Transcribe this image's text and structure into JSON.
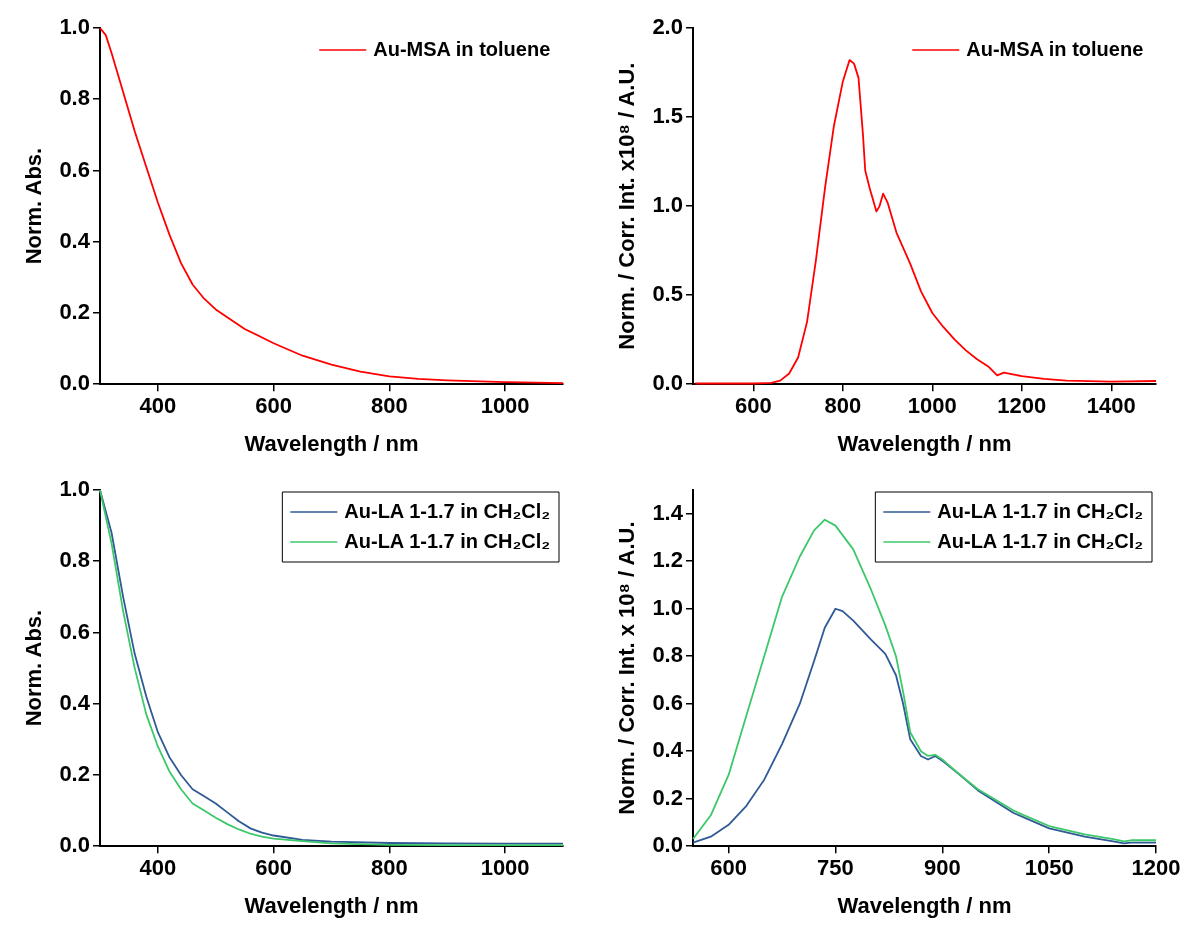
{
  "chart_data": [
    {
      "type": "line",
      "xlabel": "Wavelength / nm",
      "ylabel": "Norm. Abs.",
      "xlim": [
        300,
        1100
      ],
      "xticks": [
        400,
        600,
        800,
        1000
      ],
      "ylim": [
        0,
        1.0
      ],
      "yticks": [
        {
          "value": 0,
          "label": "0.0"
        },
        0.2,
        0.4,
        0.6,
        0.8,
        {
          "value": 1,
          "label": "1.0"
        }
      ],
      "legend": "top right",
      "series": [
        {
          "name": "Au-MSA in toluene",
          "color": "#ff0000",
          "x": [
            300,
            310,
            320,
            340,
            360,
            380,
            400,
            420,
            440,
            460,
            480,
            500,
            550,
            600,
            650,
            700,
            750,
            800,
            850,
            900,
            1000,
            1100
          ],
          "values": [
            1.0,
            0.98,
            0.93,
            0.82,
            0.71,
            0.61,
            0.51,
            0.42,
            0.34,
            0.28,
            0.24,
            0.21,
            0.155,
            0.115,
            0.08,
            0.055,
            0.035,
            0.022,
            0.015,
            0.011,
            0.006,
            0.003
          ]
        }
      ]
    },
    {
      "type": "line",
      "xlabel": "Wavelength / nm",
      "ylabel": "Norm. / Corr. Int. x10⁸ / A.U.",
      "xlim": [
        465,
        1500
      ],
      "xticks": [
        600,
        800,
        1000,
        1200,
        1400
      ],
      "ylim": [
        0,
        2.0
      ],
      "yticks": [
        {
          "value": 0,
          "label": "0.0"
        },
        0.5,
        {
          "value": 1,
          "label": "1.0"
        },
        1.5,
        {
          "value": 2,
          "label": "2.0"
        }
      ],
      "legend": "top right",
      "series": [
        {
          "name": "Au-MSA in toluene",
          "color": "#ff0000",
          "x": [
            470,
            600,
            640,
            660,
            680,
            700,
            720,
            740,
            760,
            780,
            800,
            815,
            825,
            835,
            845,
            850,
            860,
            875,
            882,
            890,
            900,
            920,
            950,
            975,
            1000,
            1025,
            1050,
            1075,
            1100,
            1125,
            1145,
            1160,
            1180,
            1200,
            1250,
            1300,
            1400,
            1500
          ],
          "values": [
            0.004,
            0.004,
            0.008,
            0.02,
            0.06,
            0.15,
            0.35,
            0.7,
            1.1,
            1.45,
            1.7,
            1.82,
            1.8,
            1.72,
            1.4,
            1.2,
            1.1,
            0.97,
            1.0,
            1.07,
            1.02,
            0.85,
            0.68,
            0.52,
            0.4,
            0.32,
            0.25,
            0.19,
            0.14,
            0.1,
            0.05,
            0.065,
            0.055,
            0.045,
            0.03,
            0.02,
            0.015,
            0.018
          ]
        }
      ]
    },
    {
      "type": "line",
      "xlabel": "Wavelength / nm",
      "ylabel": "Norm. Abs.",
      "xlim": [
        300,
        1100
      ],
      "xticks": [
        400,
        600,
        800,
        1000
      ],
      "ylim": [
        0,
        1.0
      ],
      "yticks": [
        {
          "value": 0,
          "label": "0.0"
        },
        0.2,
        0.4,
        0.6,
        0.8,
        {
          "value": 1,
          "label": "1.0"
        }
      ],
      "legend": "top right",
      "series": [
        {
          "name": "Au-LA 1-1.7 in CH₂Cl₂",
          "color": "#2f5a96",
          "x": [
            300,
            320,
            340,
            360,
            380,
            400,
            420,
            440,
            460,
            480,
            500,
            520,
            540,
            560,
            580,
            600,
            650,
            700,
            800,
            900,
            1000,
            1100
          ],
          "values": [
            1.0,
            0.88,
            0.7,
            0.54,
            0.42,
            0.32,
            0.25,
            0.2,
            0.16,
            0.14,
            0.12,
            0.095,
            0.07,
            0.05,
            0.038,
            0.03,
            0.018,
            0.013,
            0.009,
            0.008,
            0.007,
            0.007
          ]
        },
        {
          "name": "Au-LA 1-1.7 in CH₂Cl₂",
          "color": "#3cc86a",
          "x": [
            300,
            320,
            340,
            360,
            380,
            400,
            420,
            440,
            460,
            480,
            500,
            520,
            540,
            560,
            580,
            600,
            650,
            700,
            800,
            900,
            1000,
            1100
          ],
          "values": [
            1.0,
            0.85,
            0.66,
            0.5,
            0.37,
            0.28,
            0.21,
            0.16,
            0.12,
            0.1,
            0.08,
            0.062,
            0.047,
            0.035,
            0.027,
            0.021,
            0.014,
            0.008,
            0.004,
            0.003,
            0.003,
            0.003
          ]
        }
      ]
    },
    {
      "type": "line",
      "xlabel": "Wavelength / nm",
      "ylabel": "Norm. / Corr. Int. x 10⁸ / A.U.",
      "xlim": [
        550,
        1200
      ],
      "xticks": [
        600,
        750,
        900,
        1050,
        1200
      ],
      "ylim": [
        0,
        1.5
      ],
      "yticks": [
        {
          "value": 0,
          "label": "0.0"
        },
        0.2,
        0.4,
        0.6,
        0.8,
        {
          "value": 1,
          "label": "1.0"
        },
        1.2,
        1.4
      ],
      "legend": "top right",
      "series": [
        {
          "name": "Au-LA 1-1.7 in CH₂Cl₂",
          "color": "#2f5a96",
          "x": [
            550,
            575,
            600,
            625,
            650,
            675,
            700,
            720,
            735,
            750,
            760,
            775,
            800,
            820,
            835,
            845,
            855,
            870,
            880,
            890,
            900,
            925,
            950,
            1000,
            1050,
            1100,
            1140,
            1155,
            1165,
            1200
          ],
          "values": [
            0.015,
            0.04,
            0.09,
            0.17,
            0.28,
            0.43,
            0.6,
            0.78,
            0.92,
            1.0,
            0.99,
            0.95,
            0.87,
            0.81,
            0.72,
            0.6,
            0.45,
            0.38,
            0.365,
            0.38,
            0.36,
            0.3,
            0.235,
            0.14,
            0.075,
            0.04,
            0.02,
            0.012,
            0.015,
            0.015
          ]
        },
        {
          "name": "Au-LA 1-1.7 in CH₂Cl₂",
          "color": "#3cc86a",
          "x": [
            550,
            575,
            600,
            625,
            650,
            675,
            700,
            720,
            735,
            750,
            775,
            800,
            820,
            835,
            845,
            855,
            870,
            880,
            890,
            900,
            925,
            950,
            1000,
            1050,
            1100,
            1140,
            1155,
            1165,
            1200
          ],
          "values": [
            0.03,
            0.13,
            0.3,
            0.55,
            0.8,
            1.05,
            1.22,
            1.33,
            1.375,
            1.35,
            1.25,
            1.08,
            0.93,
            0.8,
            0.65,
            0.48,
            0.4,
            0.38,
            0.385,
            0.365,
            0.3,
            0.24,
            0.15,
            0.085,
            0.05,
            0.03,
            0.02,
            0.025,
            0.025
          ]
        }
      ]
    }
  ]
}
